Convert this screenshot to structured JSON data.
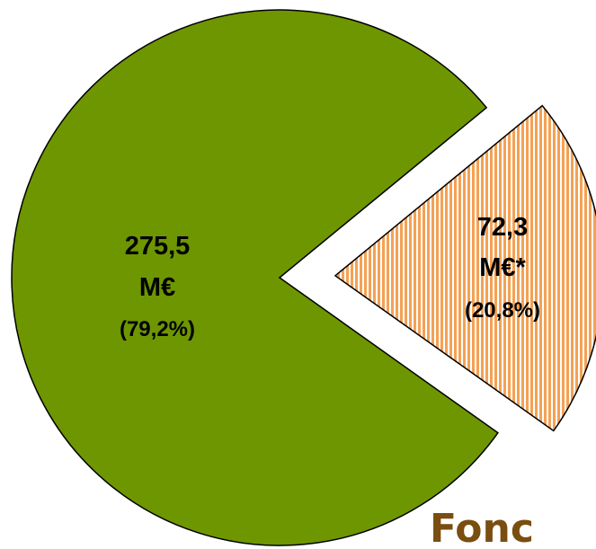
{
  "chart_data": {
    "type": "pie",
    "title": "",
    "slices": [
      {
        "value": 275.5,
        "percent": 79.2,
        "label_lines": [
          "275,5",
          "M€",
          "(79,2%)"
        ],
        "fill": "#6e9600",
        "pattern": "solid",
        "exploded": false
      },
      {
        "value": 72.3,
        "percent": 20.8,
        "label_lines": [
          "72,3",
          "M€*",
          "(20,8%)"
        ],
        "fill": "#f4a154",
        "pattern": "vertical-stripes",
        "exploded": true
      }
    ],
    "legend": "none"
  },
  "cropped_text": {
    "text": "Fonc",
    "color": "#7a4d10"
  }
}
